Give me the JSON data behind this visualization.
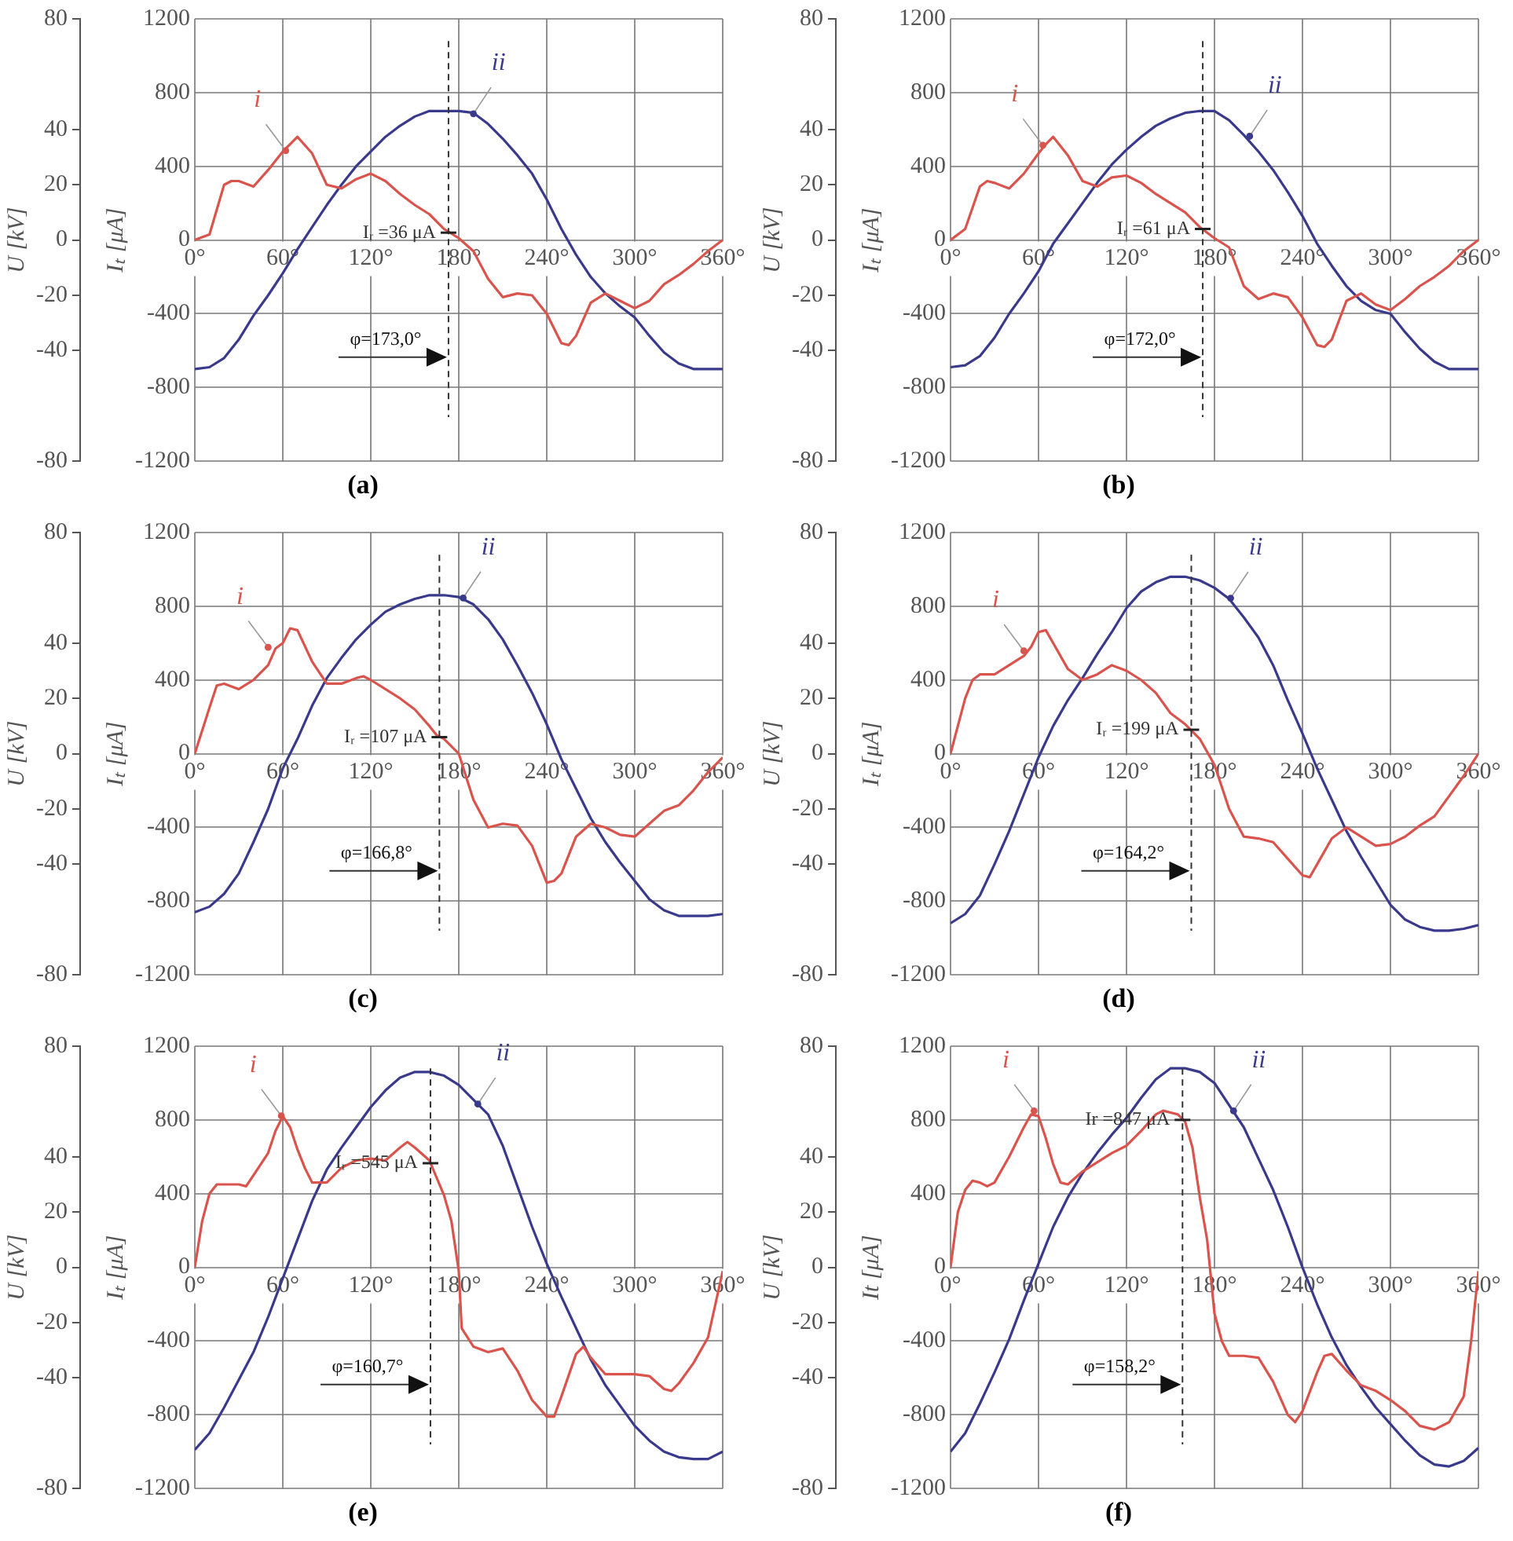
{
  "chart_data": [
    {
      "type": "line",
      "title": "(a)",
      "ylabel": "Iₜ [μA]",
      "y2label": "U [kV]",
      "xlim": [
        0,
        360
      ],
      "xticks": [
        {
          "value": 0,
          "label": "0°"
        },
        {
          "value": 60,
          "label": "60°"
        },
        {
          "value": 120,
          "label": "120°"
        },
        {
          "value": 180,
          "label": "180°"
        },
        {
          "value": 240,
          "label": "240°"
        },
        {
          "value": 300,
          "label": "300°"
        },
        {
          "value": 360,
          "label": "360°"
        }
      ],
      "ylim": [
        -1200,
        1200
      ],
      "yticks": [
        -1200,
        -800,
        -400,
        0,
        400,
        800,
        1200
      ],
      "y2lim": [
        -80,
        80
      ],
      "y2ticks": [
        -80,
        -40,
        -20,
        0,
        20,
        40,
        80
      ],
      "grid": true,
      "series": [
        {
          "color": "#d9544d",
          "x": [
            0,
            10,
            20,
            25,
            30,
            40,
            50,
            60,
            65,
            70,
            80,
            90,
            100,
            110,
            120,
            130,
            140,
            150,
            160,
            170,
            180,
            190,
            200,
            210,
            220,
            230,
            240,
            250,
            255,
            260,
            270,
            280,
            290,
            300,
            310,
            320,
            330,
            340,
            350,
            360
          ],
          "values": [
            0,
            30,
            300,
            320,
            320,
            290,
            380,
            480,
            520,
            560,
            470,
            300,
            280,
            330,
            360,
            320,
            250,
            190,
            140,
            60,
            10,
            -60,
            -210,
            -310,
            -290,
            -300,
            -400,
            -560,
            -570,
            -520,
            -340,
            -290,
            -330,
            -370,
            -330,
            -240,
            -190,
            -130,
            -60,
            0
          ]
        },
        {
          "color": "#3a3a8c",
          "x": [
            0,
            10,
            20,
            30,
            40,
            50,
            60,
            70,
            80,
            90,
            100,
            110,
            120,
            130,
            140,
            150,
            160,
            170,
            180,
            190,
            200,
            210,
            220,
            230,
            240,
            250,
            260,
            270,
            280,
            290,
            300,
            310,
            320,
            330,
            340,
            350,
            360
          ],
          "values": [
            -700,
            -690,
            -640,
            -540,
            -410,
            -300,
            -180,
            -50,
            70,
            190,
            300,
            400,
            480,
            560,
            620,
            670,
            700,
            700,
            700,
            690,
            630,
            550,
            460,
            360,
            220,
            60,
            -80,
            -200,
            -290,
            -360,
            -420,
            -520,
            -610,
            -670,
            -700,
            -700,
            -700
          ]
        }
      ],
      "ref_lines": [
        {
          "axis": "x",
          "value": 173.0,
          "label": "φ=173,0°",
          "line_style": "dashed"
        }
      ],
      "annotations": [
        {
          "text": "i",
          "x": 62,
          "y": 485
        },
        {
          "text": "ii",
          "x": 190,
          "y": 685
        },
        {
          "text": "Iᵣ =36 μA",
          "x": 173,
          "y": 40
        }
      ]
    },
    {
      "type": "line",
      "title": "(b)",
      "ylabel": "Iₜ [μA]",
      "y2label": "U [kV]",
      "xlim": [
        0,
        360
      ],
      "xticks": [
        {
          "value": 0,
          "label": "0°"
        },
        {
          "value": 60,
          "label": "60°"
        },
        {
          "value": 120,
          "label": "120°"
        },
        {
          "value": 180,
          "label": "180°"
        },
        {
          "value": 240,
          "label": "240°"
        },
        {
          "value": 300,
          "label": "300°"
        },
        {
          "value": 360,
          "label": "360°"
        }
      ],
      "ylim": [
        -1200,
        1200
      ],
      "yticks": [
        -1200,
        -800,
        -400,
        0,
        400,
        800,
        1200
      ],
      "y2lim": [
        -80,
        80
      ],
      "y2ticks": [
        -80,
        -40,
        -20,
        0,
        20,
        40,
        80
      ],
      "grid": true,
      "series": [
        {
          "color": "#d9544d",
          "x": [
            0,
            10,
            20,
            25,
            30,
            40,
            50,
            60,
            65,
            70,
            80,
            90,
            100,
            110,
            120,
            130,
            140,
            150,
            160,
            170,
            180,
            190,
            200,
            210,
            220,
            230,
            240,
            250,
            255,
            260,
            270,
            280,
            290,
            300,
            310,
            320,
            330,
            340,
            350,
            360
          ],
          "values": [
            0,
            60,
            290,
            320,
            310,
            280,
            360,
            470,
            520,
            560,
            460,
            320,
            290,
            340,
            350,
            310,
            250,
            200,
            150,
            70,
            10,
            -40,
            -250,
            -320,
            -290,
            -310,
            -420,
            -570,
            -580,
            -540,
            -330,
            -290,
            -350,
            -380,
            -320,
            -250,
            -200,
            -140,
            -60,
            0
          ]
        },
        {
          "color": "#3a3a8c",
          "x": [
            0,
            10,
            20,
            30,
            40,
            50,
            60,
            70,
            80,
            90,
            100,
            110,
            120,
            130,
            140,
            150,
            160,
            170,
            180,
            190,
            200,
            210,
            220,
            230,
            240,
            250,
            260,
            270,
            280,
            290,
            300,
            310,
            320,
            330,
            340,
            350,
            360
          ],
          "values": [
            -690,
            -680,
            -630,
            -530,
            -400,
            -290,
            -170,
            -20,
            90,
            200,
            310,
            410,
            490,
            560,
            620,
            660,
            690,
            700,
            700,
            650,
            570,
            480,
            380,
            260,
            130,
            -20,
            -140,
            -250,
            -330,
            -380,
            -400,
            -500,
            -590,
            -660,
            -700,
            -700,
            -700
          ]
        }
      ],
      "ref_lines": [
        {
          "axis": "x",
          "value": 172.0,
          "label": "φ=172,0°",
          "line_style": "dashed"
        }
      ],
      "annotations": [
        {
          "text": "i",
          "x": 63,
          "y": 514
        },
        {
          "text": "ii",
          "x": 204,
          "y": 563
        },
        {
          "text": "Iᵣ =61 μA",
          "x": 172,
          "y": 60
        }
      ]
    },
    {
      "type": "line",
      "title": "(c)",
      "ylabel": "Iₜ [μA]",
      "y2label": "U [kV]",
      "xlim": [
        0,
        360
      ],
      "xticks": [
        {
          "value": 0,
          "label": "0°"
        },
        {
          "value": 60,
          "label": "60°"
        },
        {
          "value": 120,
          "label": "120°"
        },
        {
          "value": 180,
          "label": "180°"
        },
        {
          "value": 240,
          "label": "240°"
        },
        {
          "value": 300,
          "label": "300°"
        },
        {
          "value": 360,
          "label": "360°"
        }
      ],
      "ylim": [
        -1200,
        1200
      ],
      "yticks": [
        -1200,
        -800,
        -400,
        0,
        400,
        800,
        1200
      ],
      "y2lim": [
        -80,
        80
      ],
      "y2ticks": [
        -80,
        -40,
        -20,
        0,
        20,
        40,
        80
      ],
      "grid": true,
      "series": [
        {
          "color": "#d9544d",
          "x": [
            0,
            10,
            15,
            20,
            30,
            40,
            50,
            55,
            60,
            65,
            70,
            80,
            90,
            100,
            110,
            115,
            120,
            130,
            140,
            150,
            160,
            165,
            170,
            180,
            190,
            200,
            210,
            220,
            230,
            240,
            245,
            250,
            260,
            270,
            280,
            290,
            300,
            310,
            320,
            330,
            340,
            350,
            360
          ],
          "values": [
            0,
            250,
            370,
            380,
            350,
            400,
            480,
            570,
            600,
            680,
            670,
            500,
            380,
            380,
            410,
            420,
            400,
            350,
            300,
            240,
            150,
            100,
            80,
            0,
            -250,
            -400,
            -380,
            -390,
            -500,
            -700,
            -690,
            -650,
            -450,
            -380,
            -400,
            -440,
            -450,
            -380,
            -310,
            -280,
            -200,
            -100,
            -20
          ]
        },
        {
          "color": "#3a3a8c",
          "x": [
            0,
            10,
            20,
            30,
            40,
            50,
            60,
            70,
            80,
            90,
            100,
            110,
            120,
            130,
            140,
            150,
            160,
            170,
            180,
            190,
            200,
            210,
            220,
            230,
            240,
            250,
            260,
            270,
            280,
            290,
            300,
            310,
            320,
            330,
            340,
            350,
            360
          ],
          "values": [
            -860,
            -830,
            -760,
            -650,
            -480,
            -300,
            -80,
            80,
            260,
            410,
            520,
            620,
            700,
            770,
            810,
            840,
            860,
            860,
            850,
            810,
            730,
            620,
            480,
            330,
            160,
            -30,
            -190,
            -350,
            -480,
            -590,
            -690,
            -790,
            -850,
            -880,
            -880,
            -880,
            -870
          ]
        }
      ],
      "ref_lines": [
        {
          "axis": "x",
          "value": 166.8,
          "label": "φ=166,8°",
          "line_style": "dashed"
        }
      ],
      "annotations": [
        {
          "text": "i",
          "x": 50,
          "y": 577
        },
        {
          "text": "ii",
          "x": 183,
          "y": 845
        },
        {
          "text": "Iᵣ =107 μA",
          "x": 166.8,
          "y": 90
        }
      ]
    },
    {
      "type": "line",
      "title": "(d)",
      "ylabel": "Iₜ [μA]",
      "y2label": "U [kV]",
      "xlim": [
        0,
        360
      ],
      "xticks": [
        {
          "value": 0,
          "label": "0°"
        },
        {
          "value": 60,
          "label": "60°"
        },
        {
          "value": 120,
          "label": "120°"
        },
        {
          "value": 180,
          "label": "180°"
        },
        {
          "value": 240,
          "label": "240°"
        },
        {
          "value": 300,
          "label": "300°"
        },
        {
          "value": 360,
          "label": "360°"
        }
      ],
      "ylim": [
        -1200,
        1200
      ],
      "yticks": [
        -1200,
        -800,
        -400,
        0,
        400,
        800,
        1200
      ],
      "y2lim": [
        -80,
        80
      ],
      "y2ticks": [
        -80,
        -40,
        -20,
        0,
        20,
        40,
        80
      ],
      "grid": true,
      "series": [
        {
          "color": "#d9544d",
          "x": [
            0,
            10,
            15,
            20,
            30,
            40,
            50,
            55,
            60,
            65,
            70,
            80,
            90,
            100,
            110,
            120,
            130,
            140,
            150,
            160,
            170,
            180,
            190,
            200,
            210,
            220,
            230,
            240,
            245,
            250,
            260,
            270,
            280,
            290,
            300,
            310,
            320,
            330,
            340,
            350,
            360
          ],
          "values": [
            0,
            300,
            400,
            430,
            430,
            480,
            530,
            580,
            660,
            670,
            600,
            460,
            400,
            430,
            480,
            450,
            400,
            330,
            220,
            160,
            80,
            -60,
            -300,
            -450,
            -460,
            -480,
            -570,
            -660,
            -670,
            -600,
            -460,
            -400,
            -450,
            -500,
            -490,
            -450,
            -390,
            -340,
            -230,
            -120,
            0
          ]
        },
        {
          "color": "#3a3a8c",
          "x": [
            0,
            10,
            20,
            30,
            40,
            50,
            60,
            70,
            80,
            90,
            100,
            110,
            120,
            130,
            140,
            150,
            160,
            170,
            180,
            190,
            200,
            210,
            220,
            230,
            240,
            250,
            260,
            270,
            280,
            290,
            300,
            310,
            320,
            330,
            340,
            350,
            360
          ],
          "values": [
            -920,
            -870,
            -770,
            -600,
            -420,
            -220,
            -20,
            150,
            290,
            410,
            540,
            660,
            790,
            880,
            930,
            960,
            960,
            940,
            900,
            840,
            740,
            630,
            480,
            290,
            110,
            -80,
            -250,
            -420,
            -560,
            -690,
            -820,
            -900,
            -940,
            -960,
            -960,
            -950,
            -930
          ]
        }
      ],
      "ref_lines": [
        {
          "axis": "x",
          "value": 164.2,
          "label": "φ=164,2°",
          "line_style": "dashed"
        }
      ],
      "annotations": [
        {
          "text": "i",
          "x": 50,
          "y": 558
        },
        {
          "text": "ii",
          "x": 191,
          "y": 844
        },
        {
          "text": "Iᵣ =199 μA",
          "x": 164.2,
          "y": 130
        }
      ]
    },
    {
      "type": "line",
      "title": "(e)",
      "ylabel": "Iₜ [μA]",
      "y2label": "U [kV]",
      "xlim": [
        0,
        360
      ],
      "xticks": [
        {
          "value": 0,
          "label": "0°"
        },
        {
          "value": 60,
          "label": "60°"
        },
        {
          "value": 120,
          "label": "120°"
        },
        {
          "value": 180,
          "label": "180°"
        },
        {
          "value": 240,
          "label": "240°"
        },
        {
          "value": 300,
          "label": "300°"
        },
        {
          "value": 360,
          "label": "360°"
        }
      ],
      "ylim": [
        -1200,
        1200
      ],
      "yticks": [
        -1200,
        -800,
        -400,
        0,
        400,
        800,
        1200
      ],
      "y2lim": [
        -80,
        80
      ],
      "y2ticks": [
        -80,
        -40,
        -20,
        0,
        20,
        40,
        80
      ],
      "grid": true,
      "series": [
        {
          "color": "#d9544d",
          "x": [
            0,
            5,
            10,
            15,
            20,
            30,
            35,
            40,
            50,
            55,
            60,
            65,
            70,
            75,
            80,
            90,
            100,
            110,
            120,
            130,
            140,
            145,
            150,
            160,
            170,
            175,
            180,
            182,
            190,
            200,
            210,
            220,
            230,
            240,
            245,
            250,
            260,
            265,
            270,
            280,
            290,
            300,
            310,
            320,
            325,
            330,
            340,
            350,
            355,
            360
          ],
          "values": [
            0,
            250,
            400,
            450,
            450,
            450,
            440,
            500,
            620,
            740,
            820,
            760,
            640,
            540,
            460,
            460,
            540,
            580,
            590,
            580,
            650,
            680,
            650,
            580,
            390,
            250,
            -20,
            -330,
            -430,
            -460,
            -440,
            -560,
            -720,
            -810,
            -810,
            -700,
            -470,
            -430,
            -490,
            -580,
            -580,
            -580,
            -590,
            -660,
            -670,
            -630,
            -520,
            -380,
            -200,
            -20
          ]
        },
        {
          "color": "#3a3a8c",
          "x": [
            0,
            10,
            20,
            30,
            40,
            50,
            60,
            70,
            80,
            90,
            100,
            110,
            120,
            130,
            140,
            150,
            160,
            170,
            180,
            190,
            200,
            210,
            220,
            230,
            240,
            250,
            260,
            270,
            280,
            290,
            300,
            310,
            320,
            330,
            340,
            350,
            360
          ],
          "values": [
            -990,
            -900,
            -760,
            -610,
            -460,
            -270,
            -60,
            150,
            360,
            530,
            650,
            760,
            870,
            960,
            1030,
            1060,
            1060,
            1040,
            990,
            910,
            830,
            660,
            440,
            220,
            20,
            -160,
            -330,
            -500,
            -640,
            -750,
            -860,
            -940,
            -1000,
            -1030,
            -1040,
            -1040,
            -1000
          ]
        }
      ],
      "ref_lines": [
        {
          "axis": "x",
          "value": 160.7,
          "label": "φ=160,7°",
          "line_style": "dashed"
        }
      ],
      "annotations": [
        {
          "text": "i",
          "x": 59,
          "y": 822
        },
        {
          "text": "ii",
          "x": 193,
          "y": 886
        },
        {
          "text": "Iᵣ =545 μA",
          "x": 160.7,
          "y": 565
        }
      ]
    },
    {
      "type": "line",
      "title": "(f)",
      "ylabel": "It [μA]",
      "y2label": "U [kV]",
      "xlim": [
        0,
        360
      ],
      "xticks": [
        {
          "value": 0,
          "label": "0°"
        },
        {
          "value": 60,
          "label": "60°"
        },
        {
          "value": 120,
          "label": "120°"
        },
        {
          "value": 180,
          "label": "180°"
        },
        {
          "value": 240,
          "label": "240°"
        },
        {
          "value": 300,
          "label": "300°"
        },
        {
          "value": 360,
          "label": "360°"
        }
      ],
      "ylim": [
        -1200,
        1200
      ],
      "yticks": [
        -1200,
        -800,
        -400,
        0,
        400,
        800,
        1200
      ],
      "y2lim": [
        -80,
        80
      ],
      "y2ticks": [
        -80,
        -40,
        -20,
        0,
        20,
        40,
        80
      ],
      "grid": true,
      "series": [
        {
          "color": "#d9544d",
          "x": [
            0,
            5,
            10,
            15,
            20,
            25,
            30,
            40,
            50,
            55,
            60,
            65,
            70,
            75,
            80,
            90,
            100,
            110,
            120,
            130,
            140,
            145,
            150,
            155,
            160,
            165,
            170,
            175,
            180,
            185,
            190,
            200,
            210,
            220,
            230,
            235,
            240,
            250,
            255,
            260,
            270,
            280,
            290,
            300,
            310,
            320,
            330,
            340,
            350,
            355,
            360
          ],
          "values": [
            0,
            300,
            420,
            470,
            460,
            440,
            460,
            600,
            760,
            830,
            820,
            700,
            560,
            460,
            450,
            520,
            570,
            620,
            660,
            740,
            830,
            850,
            840,
            830,
            790,
            650,
            380,
            150,
            -250,
            -400,
            -480,
            -480,
            -490,
            -620,
            -800,
            -840,
            -780,
            -570,
            -480,
            -470,
            -560,
            -640,
            -670,
            -720,
            -780,
            -860,
            -880,
            -840,
            -700,
            -400,
            -20
          ]
        },
        {
          "color": "#3a3a8c",
          "x": [
            0,
            10,
            20,
            30,
            40,
            50,
            60,
            70,
            80,
            90,
            100,
            110,
            120,
            130,
            140,
            150,
            160,
            170,
            180,
            190,
            200,
            210,
            220,
            230,
            240,
            250,
            260,
            270,
            280,
            290,
            300,
            310,
            320,
            330,
            340,
            350,
            360
          ],
          "values": [
            -1000,
            -900,
            -740,
            -570,
            -390,
            -180,
            20,
            220,
            380,
            510,
            620,
            720,
            810,
            920,
            1020,
            1080,
            1080,
            1060,
            1000,
            880,
            760,
            590,
            420,
            220,
            0,
            -200,
            -380,
            -530,
            -650,
            -760,
            -850,
            -940,
            -1020,
            -1070,
            -1080,
            -1050,
            -980
          ]
        }
      ],
      "ref_lines": [
        {
          "axis": "x",
          "value": 158.2,
          "label": "φ=158,2°",
          "line_style": "dashed"
        }
      ],
      "annotations": [
        {
          "text": "i",
          "x": 57,
          "y": 849
        },
        {
          "text": "ii",
          "x": 193,
          "y": 849
        },
        {
          "text": "Ir =847 μA",
          "x": 158.2,
          "y": 800
        }
      ]
    }
  ]
}
